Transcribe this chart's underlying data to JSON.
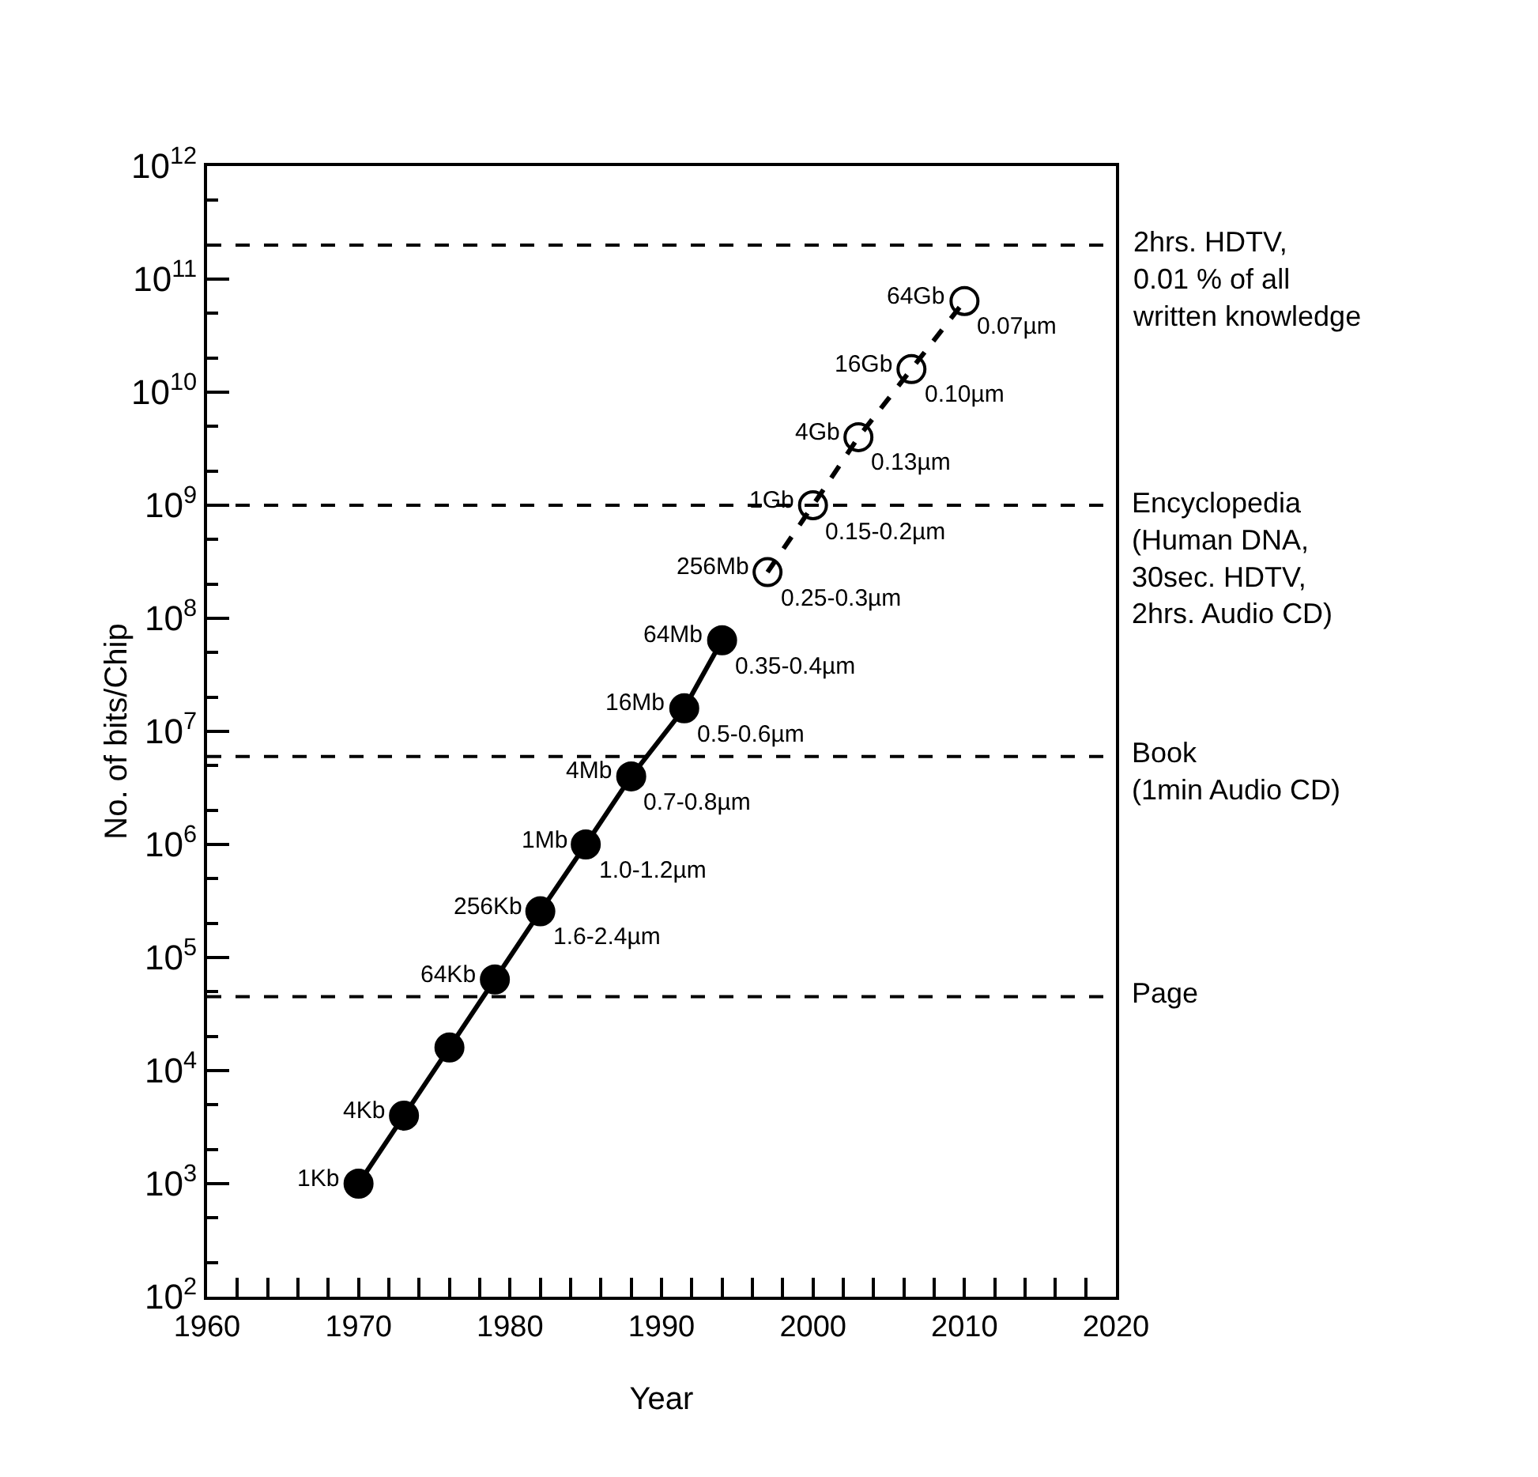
{
  "chart_data": {
    "type": "line",
    "xlabel": "Year",
    "ylabel": "No. of bits/Chip",
    "log": "y",
    "xlim": [
      1960,
      2020
    ],
    "xticks": [
      1960,
      {
        "value": 1962,
        "label": null
      },
      {
        "value": 1964,
        "label": null
      },
      {
        "value": 1966,
        "label": null
      },
      {
        "value": 1968,
        "label": null
      },
      1970,
      {
        "value": 1972,
        "label": null
      },
      {
        "value": 1974,
        "label": null
      },
      {
        "value": 1976,
        "label": null
      },
      {
        "value": 1978,
        "label": null
      },
      1980,
      {
        "value": 1982,
        "label": null
      },
      {
        "value": 1984,
        "label": null
      },
      {
        "value": 1986,
        "label": null
      },
      {
        "value": 1988,
        "label": null
      },
      1990,
      {
        "value": 1992,
        "label": null
      },
      {
        "value": 1994,
        "label": null
      },
      {
        "value": 1996,
        "label": null
      },
      {
        "value": 1998,
        "label": null
      },
      2000,
      {
        "value": 2002,
        "label": null
      },
      {
        "value": 2004,
        "label": null
      },
      {
        "value": 2006,
        "label": null
      },
      {
        "value": 2008,
        "label": null
      },
      2010,
      {
        "value": 2012,
        "label": null
      },
      {
        "value": 2014,
        "label": null
      },
      {
        "value": 2016,
        "label": null
      },
      {
        "value": 2018,
        "label": null
      },
      2020
    ],
    "ylim": [
      100,
      1000000000000
    ],
    "yticks": [
      {
        "value": 100,
        "label": "10$^{2}$"
      },
      {
        "value": 1000,
        "label": "10$^{3}$"
      },
      {
        "value": 10000,
        "label": "10$^{4}$"
      },
      {
        "value": 100000,
        "label": "10$^{5}$"
      },
      {
        "value": 1000000,
        "label": "10$^{6}$"
      },
      {
        "value": 10000000,
        "label": "10$^{7}$"
      },
      {
        "value": 100000000,
        "label": "10$^{8}$"
      },
      {
        "value": 1000000000,
        "label": "10$^{9}$"
      },
      {
        "value": 10000000000,
        "label": "10$^{10}$"
      },
      {
        "value": 100000000000,
        "label": "10$^{11}$"
      },
      {
        "value": 1000000000000,
        "label": "10$^{12}$"
      }
    ],
    "grid": false,
    "marker": "circle",
    "series": [
      {
        "color": "#000000",
        "line_style": "solid",
        "x": [
          1970,
          1973,
          1976,
          1979,
          1982,
          1985,
          1988,
          1991.5,
          1994
        ],
        "values": [
          1000,
          4000,
          16000,
          64000,
          256000,
          1000000,
          4000000,
          16000000,
          64000000
        ]
      },
      {
        "color": "#000000",
        "line_style": "dashed",
        "marker": "circle-open",
        "x": [
          1997,
          2000,
          2003,
          2006.5,
          2010
        ],
        "values": [
          256000000,
          1000000000,
          4000000000,
          16000000000,
          64000000000
        ]
      }
    ],
    "ref_lines": [
      {
        "axis": "y",
        "value": 200000000000,
        "label": "2hrs. HDTV,\n0.01 % of all\nwritten knowledge",
        "line_style": "dashed",
        "color": "#000000"
      },
      {
        "axis": "y",
        "value": 1000000000,
        "label": "Encyclopedia\n(Human DNA,\n30sec. HDTV,\n2hrs. Audio CD)",
        "line_style": "dashed",
        "color": "#000000"
      },
      {
        "axis": "y",
        "value": 6000000,
        "label": "Book\n(1min Audio CD)",
        "line_style": "dashed",
        "color": "#000000"
      },
      {
        "axis": "y",
        "value": 45000,
        "label": "Page",
        "line_style": "dashed",
        "color": "#000000"
      }
    ],
    "annotations": [
      {
        "text": "1Kb",
        "x": 1970,
        "y": 1000
      },
      {
        "text": "4Kb",
        "x": 1973,
        "y": 4000
      },
      {
        "text": "64Kb",
        "x": 1979,
        "y": 64000
      },
      {
        "text": "256Kb",
        "x": 1982,
        "y": 256000
      },
      {
        "text": "1Mb",
        "x": 1985,
        "y": 1000000
      },
      {
        "text": "4Mb",
        "x": 1988,
        "y": 4000000
      },
      {
        "text": "16Mb",
        "x": 1991.5,
        "y": 16000000
      },
      {
        "text": "64Mb",
        "x": 1994,
        "y": 64000000
      },
      {
        "text": "256Mb",
        "x": 1997,
        "y": 256000000
      },
      {
        "text": "1Gb",
        "x": 2000,
        "y": 1000000000
      },
      {
        "text": "4Gb",
        "x": 2003,
        "y": 4000000000
      },
      {
        "text": "16Gb",
        "x": 2006.5,
        "y": 16000000000
      },
      {
        "text": "64Gb",
        "x": 2010,
        "y": 64000000000
      },
      {
        "text": "1.6-2.4µm",
        "x": 1982,
        "y": 256000
      },
      {
        "text": "1.0-1.2µm",
        "x": 1985,
        "y": 1000000
      },
      {
        "text": "0.7-0.8µm",
        "x": 1988,
        "y": 4000000
      },
      {
        "text": "0.5-0.6µm",
        "x": 1991.5,
        "y": 16000000
      },
      {
        "text": "0.35-0.4µm",
        "x": 1994,
        "y": 64000000
      },
      {
        "text": "0.25-0.3µm",
        "x": 1997,
        "y": 256000000
      },
      {
        "text": "0.15-0.2µm",
        "x": 2000,
        "y": 1000000000
      },
      {
        "text": "0.13µm",
        "x": 2003,
        "y": 4000000000
      },
      {
        "text": "0.10µm",
        "x": 2006.5,
        "y": 16000000000
      },
      {
        "text": "0.07µm",
        "x": 2010,
        "y": 64000000000
      }
    ]
  }
}
